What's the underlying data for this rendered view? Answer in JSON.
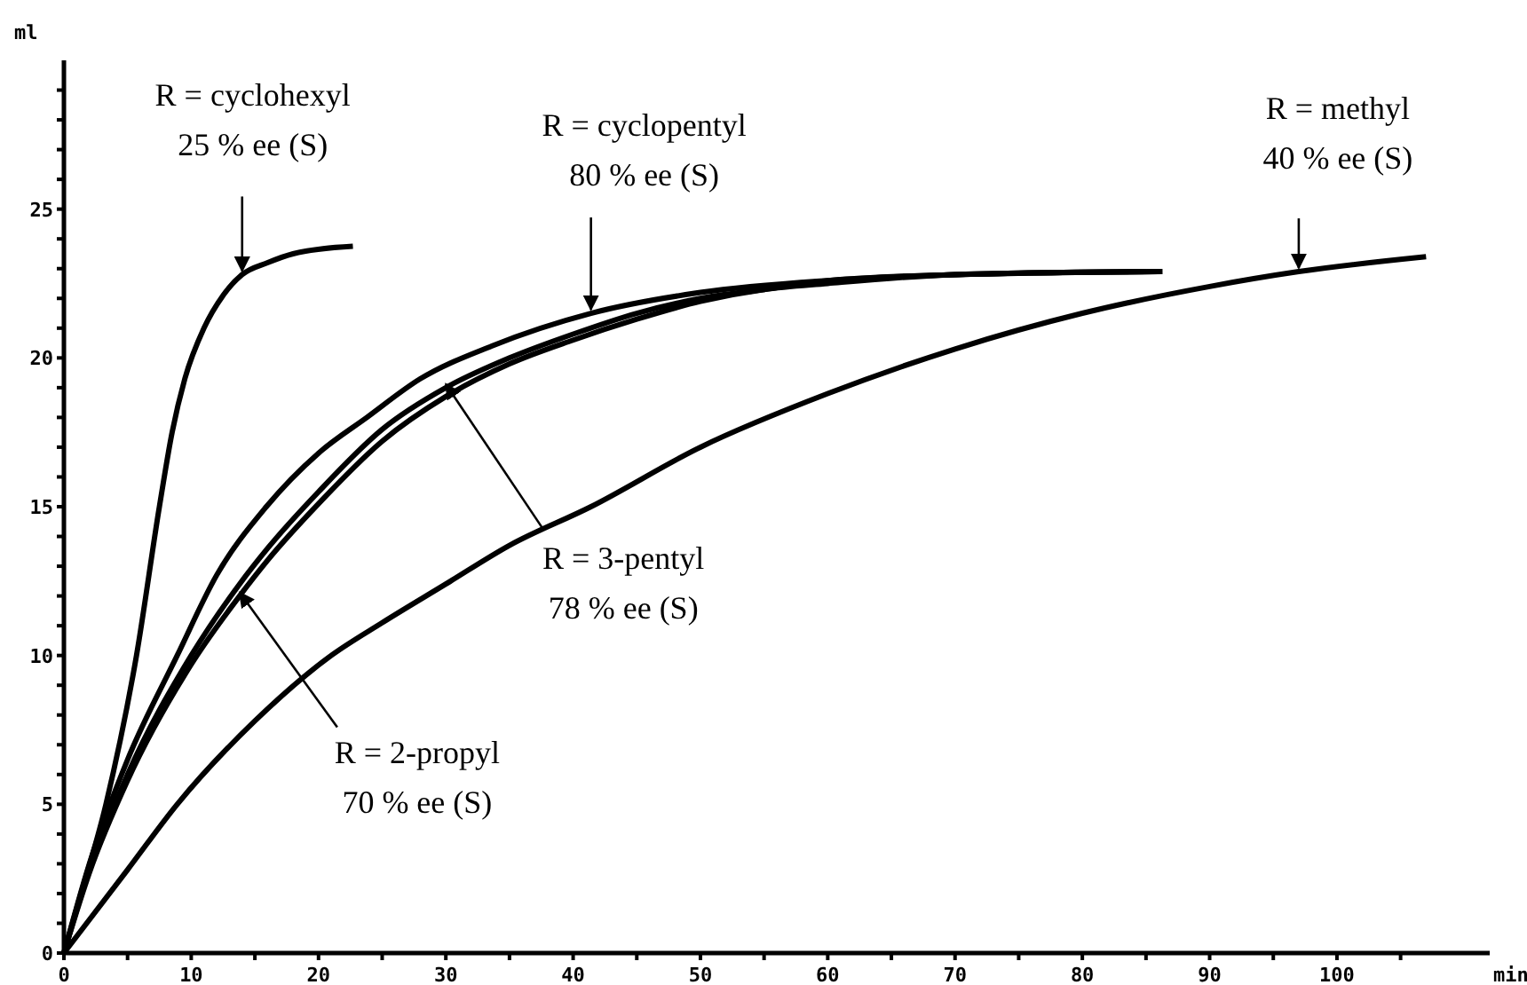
{
  "chart_data": {
    "type": "line",
    "xlabel": "min",
    "ylabel": "ml",
    "xlim": [
      0,
      112
    ],
    "ylim": [
      0,
      30
    ],
    "xticks": [
      0,
      {
        "value": 5,
        "label": null
      },
      10,
      {
        "value": 15,
        "label": null
      },
      20,
      {
        "value": 25,
        "label": null
      },
      30,
      {
        "value": 35,
        "label": null
      },
      40,
      {
        "value": 45,
        "label": null
      },
      50,
      {
        "value": 55,
        "label": null
      },
      60,
      {
        "value": 65,
        "label": null
      },
      70,
      {
        "value": 75,
        "label": null
      },
      80,
      {
        "value": 85,
        "label": null
      },
      90,
      {
        "value": 95,
        "label": null
      },
      100,
      {
        "value": 105,
        "label": null
      }
    ],
    "yticks": [
      0,
      {
        "value": 1,
        "label": null
      },
      {
        "value": 2,
        "label": null
      },
      {
        "value": 3,
        "label": null
      },
      {
        "value": 4,
        "label": null
      },
      5,
      {
        "value": 6,
        "label": null
      },
      {
        "value": 7,
        "label": null
      },
      {
        "value": 8,
        "label": null
      },
      {
        "value": 9,
        "label": null
      },
      10,
      {
        "value": 11,
        "label": null
      },
      {
        "value": 12,
        "label": null
      },
      {
        "value": 13,
        "label": null
      },
      {
        "value": 14,
        "label": null
      },
      15,
      {
        "value": 16,
        "label": null
      },
      {
        "value": 17,
        "label": null
      },
      {
        "value": 18,
        "label": null
      },
      {
        "value": 19,
        "label": null
      },
      20,
      {
        "value": 21,
        "label": null
      },
      {
        "value": 22,
        "label": null
      },
      {
        "value": 23,
        "label": null
      },
      {
        "value": 24,
        "label": null
      },
      25,
      {
        "value": 26,
        "label": null
      },
      {
        "value": 27,
        "label": null
      },
      {
        "value": 28,
        "label": null
      },
      {
        "value": 29,
        "label": null
      }
    ],
    "grid": false,
    "marker": "none",
    "line_style": "solid",
    "series": [
      {
        "color": "#000000",
        "x": [
          0,
          1,
          3.3,
          5.7,
          7.5,
          8.5,
          9.5,
          11,
          12.5,
          14,
          16,
          18,
          22.7
        ],
        "values": [
          0,
          1.5,
          5,
          10,
          15,
          17.5,
          19.3,
          21,
          22.1,
          22.8,
          23.2,
          23.5,
          23.75
        ]
      },
      {
        "color": "#000000",
        "x": [
          0,
          2,
          5,
          8.9,
          12,
          15.9,
          20,
          23.8,
          28,
          33.6,
          41.4,
          50,
          60,
          70,
          86.3
        ],
        "values": [
          0,
          3,
          6.5,
          10,
          12.7,
          15,
          16.8,
          18,
          19.3,
          20.4,
          21.5,
          22.2,
          22.6,
          22.8,
          22.9
        ]
      },
      {
        "color": "#000000",
        "x": [
          0,
          2,
          5,
          10,
          13.8,
          16,
          20,
          25,
          30,
          35,
          40,
          45,
          50,
          55,
          60,
          70,
          86
        ],
        "values": [
          0,
          2.8,
          6,
          10,
          12.4,
          13.6,
          15.5,
          17.6,
          19,
          20,
          20.8,
          21.5,
          22,
          22.3,
          22.6,
          22.8,
          22.9
        ]
      },
      {
        "color": "#000000",
        "x": [
          0,
          2,
          5,
          10,
          13.8,
          16,
          20,
          25,
          30,
          35,
          40,
          45,
          50,
          55,
          60,
          70,
          85
        ],
        "values": [
          0,
          2.7,
          5.8,
          9.7,
          12,
          13.2,
          15.1,
          17.2,
          18.7,
          19.8,
          20.6,
          21.3,
          21.9,
          22.3,
          22.5,
          22.8,
          22.9
        ]
      },
      {
        "color": "#000000",
        "x": [
          0,
          5,
          8.9,
          15,
          21,
          25,
          30,
          35,
          41.4,
          50,
          60,
          70,
          80,
          90,
          97,
          107
        ],
        "values": [
          0,
          2.8,
          5,
          7.8,
          10,
          11.1,
          12.4,
          13.7,
          15,
          17,
          18.8,
          20.3,
          21.5,
          22.4,
          22.9,
          23.4
        ]
      }
    ],
    "annotations": [
      {
        "text": "R = cyclohexyl\n25 % ee (S)",
        "x": 14,
        "y": 22.8
      },
      {
        "text": "R = cyclopentyl\n80 % ee (S)",
        "x": 41.4,
        "y": 21.5
      },
      {
        "text": "R = methyl\n40 % ee (S)",
        "x": 97,
        "y": 22.9
      },
      {
        "text": "R = 3-pentyl\n78 % ee (S)",
        "x": 30,
        "y": 19
      },
      {
        "text": "R = 2-propyl\n70 % ee (S)",
        "x": 13.8,
        "y": 12
      }
    ]
  }
}
